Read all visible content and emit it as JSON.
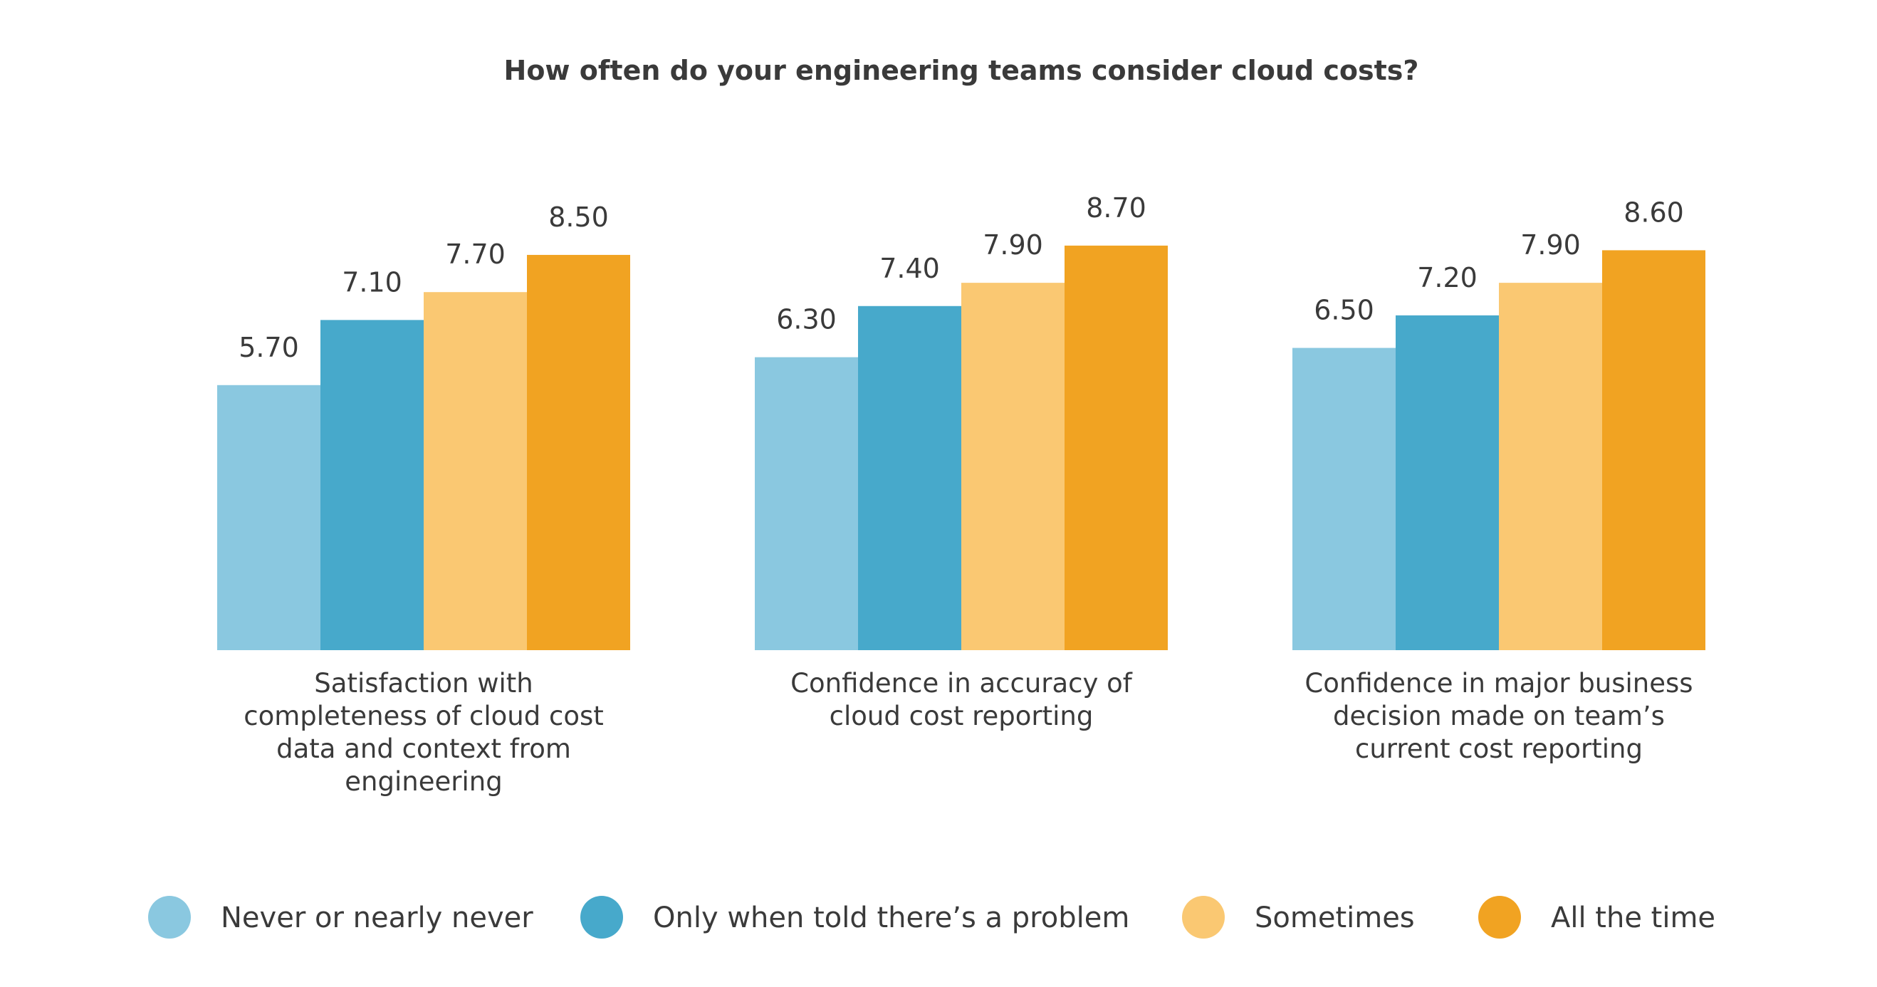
{
  "chart_data": {
    "type": "bar",
    "title": "How often do your engineering teams consider cloud costs?",
    "categories": [
      [
        "Satisfaction with",
        "completeness of cloud cost",
        "data and context from",
        "engineering"
      ],
      [
        "Confidence in accuracy of",
        "cloud cost reporting"
      ],
      [
        "Confidence in major business",
        "decision made on team’s",
        "current cost reporting"
      ]
    ],
    "series": [
      {
        "name": "Never or nearly never",
        "color": "#8ac8e0",
        "values": [
          5.7,
          6.3,
          6.5
        ],
        "labels": [
          "5.70",
          "6.30",
          "6.50"
        ]
      },
      {
        "name": "Only when told there’s a problem",
        "color": "#47a9cb",
        "values": [
          7.1,
          7.4,
          7.2
        ],
        "labels": [
          "7.10",
          "7.40",
          "7.20"
        ]
      },
      {
        "name": "Sometimes",
        "color": "#fac872",
        "values": [
          7.7,
          7.9,
          7.9
        ],
        "labels": [
          "7.70",
          "7.90",
          "7.90"
        ]
      },
      {
        "name": "All the time",
        "color": "#f1a322",
        "values": [
          8.5,
          8.7,
          8.6
        ],
        "labels": [
          "8.50",
          "8.70",
          "8.60"
        ]
      }
    ],
    "ylim": [
      0,
      10
    ],
    "grid": false,
    "legend_position": "bottom"
  }
}
